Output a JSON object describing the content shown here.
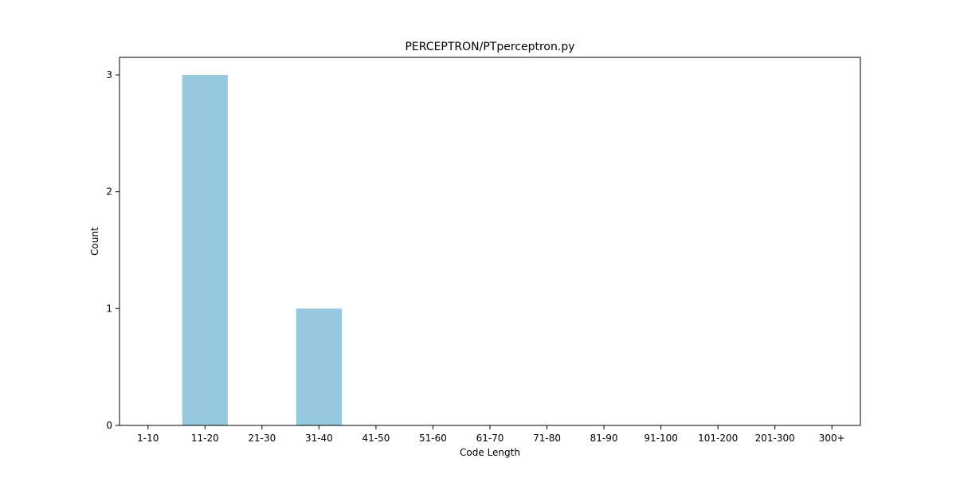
{
  "chart_data": {
    "type": "bar",
    "title": "PERCEPTRON/PTperceptron.py",
    "xlabel": "Code Length",
    "ylabel": "Count",
    "categories": [
      "1-10",
      "11-20",
      "21-30",
      "31-40",
      "41-50",
      "51-60",
      "61-70",
      "71-80",
      "81-90",
      "91-100",
      "101-200",
      "201-300",
      "300+"
    ],
    "values": [
      0,
      3,
      0,
      1,
      0,
      0,
      0,
      0,
      0,
      0,
      0,
      0,
      0
    ],
    "ylim": [
      0,
      3.15
    ],
    "yticks": [
      0,
      1,
      2,
      3
    ],
    "bar_color": "#96c9dd",
    "grid": false,
    "legend": "none"
  }
}
